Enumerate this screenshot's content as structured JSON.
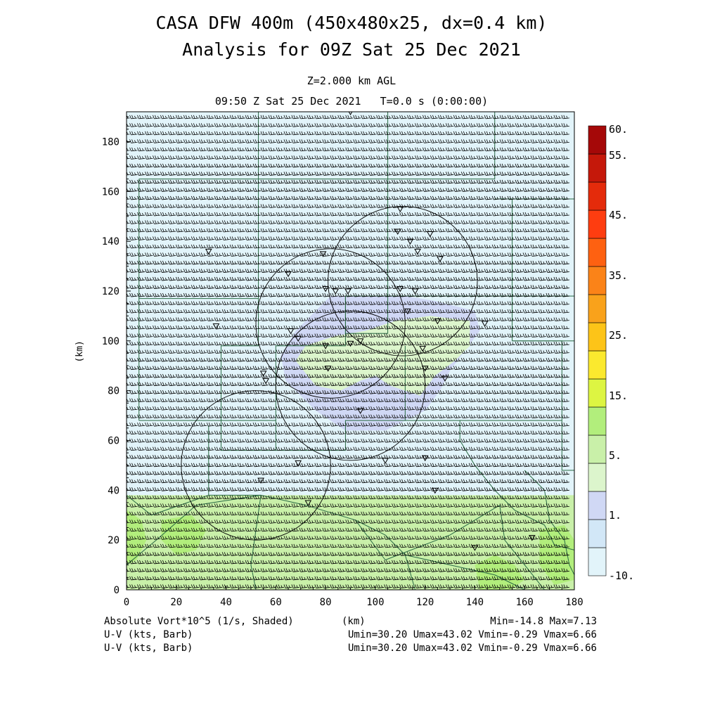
{
  "header": {
    "title": "CASA DFW 400m (450x480x25, dx=0.4 km)",
    "analysis": "Analysis for 09Z Sat 25 Dec 2021",
    "level": "Z=2.000 km AGL",
    "time": "09:50 Z Sat 25 Dec 2021   T=0.0 s (0:00:00)"
  },
  "footer": {
    "field": "Absolute Vort*10^5 (1/s, Shaded)",
    "xunit": "(km)",
    "minmax": "Min=-14.8 Max=7.13",
    "barb1_label": "U-V (kts, Barb)",
    "barb1_stats": "Umin=30.20 Umax=43.02 Vmin=-0.29 Vmax=6.66",
    "barb2_label": "U-V (kts, Barb)",
    "barb2_stats": "Umin=30.20 Umax=43.02 Vmin=-0.29 Vmax=6.66"
  },
  "chart_data": {
    "type": "heatmap",
    "xlabel": "(km)",
    "ylabel": "(km)",
    "xlim": [
      0,
      180
    ],
    "ylim": [
      0,
      192
    ],
    "xticks": [
      0,
      20,
      40,
      60,
      80,
      100,
      120,
      140,
      160,
      180
    ],
    "yticks": [
      0,
      20,
      40,
      60,
      80,
      100,
      120,
      140,
      160,
      180
    ],
    "colorbar": {
      "levels": [
        "-10.",
        "1.",
        "5.",
        "15.",
        "25.",
        "35.",
        "45.",
        "55.",
        "60."
      ],
      "colors": [
        "#e2f4fa",
        "#d2e7f7",
        "#d0d8f5",
        "#dcf5cc",
        "#c9f0a9",
        "#b2ee7c",
        "#ddf542",
        "#fbe92e",
        "#fdc418",
        "#f9a21b",
        "#fb8318",
        "#fe6111",
        "#fe3d10",
        "#e42b0b",
        "#c5180a",
        "#a50808"
      ]
    },
    "shading_regions": [
      {
        "level": "1.",
        "color": "#d0d8f5",
        "points": [
          [
            68,
            104
          ],
          [
            82,
            118
          ],
          [
            112,
            118
          ],
          [
            124,
            116
          ],
          [
            140,
            112
          ],
          [
            142,
            104
          ],
          [
            136,
            96
          ],
          [
            130,
            88
          ],
          [
            126,
            80
          ],
          [
            120,
            72
          ],
          [
            104,
            64
          ],
          [
            88,
            64
          ],
          [
            76,
            72
          ],
          [
            64,
            84
          ],
          [
            62,
            94
          ]
        ]
      },
      {
        "level": "5.",
        "color": "#dcf5cc",
        "points": [
          [
            68,
            92
          ],
          [
            72,
            98
          ],
          [
            84,
            102
          ],
          [
            96,
            104
          ],
          [
            108,
            108
          ],
          [
            122,
            110
          ],
          [
            138,
            108
          ],
          [
            138,
            98
          ],
          [
            132,
            92
          ],
          [
            124,
            86
          ],
          [
            118,
            78
          ],
          [
            106,
            82
          ],
          [
            100,
            86
          ],
          [
            94,
            84
          ],
          [
            86,
            80
          ],
          [
            76,
            82
          ]
        ]
      },
      {
        "level": "5.",
        "color": "#c9f0a9",
        "points": [
          [
            0,
            38
          ],
          [
            180,
            38
          ],
          [
            180,
            0
          ],
          [
            0,
            0
          ]
        ]
      },
      {
        "level": "15.",
        "color": "#b2ee7c",
        "points": [
          [
            0,
            32
          ],
          [
            6,
            28
          ],
          [
            8,
            20
          ],
          [
            4,
            12
          ],
          [
            0,
            10
          ]
        ]
      },
      {
        "level": "15.",
        "color": "#b2ee7c",
        "points": [
          [
            14,
            28
          ],
          [
            26,
            30
          ],
          [
            32,
            24
          ],
          [
            28,
            16
          ],
          [
            20,
            14
          ],
          [
            14,
            20
          ]
        ]
      },
      {
        "level": "15.",
        "color": "#b2ee7c",
        "points": [
          [
            140,
            10
          ],
          [
            148,
            14
          ],
          [
            156,
            10
          ],
          [
            160,
            4
          ],
          [
            154,
            0
          ],
          [
            142,
            0
          ]
        ]
      },
      {
        "level": "15.",
        "color": "#b2ee7c",
        "points": [
          [
            166,
            24
          ],
          [
            176,
            26
          ],
          [
            180,
            20
          ],
          [
            180,
            4
          ],
          [
            172,
            2
          ],
          [
            166,
            10
          ]
        ]
      }
    ],
    "wind_barbs": {
      "u_range": [
        30.2,
        43.02
      ],
      "v_range": [
        -0.29,
        6.66
      ],
      "units": "kts"
    },
    "radar_rings": [
      {
        "center": [
          52,
          50
        ],
        "radius": 30
      },
      {
        "center": [
          82,
          107
        ],
        "radius": 30
      },
      {
        "center": [
          90,
          82
        ],
        "radius": 30
      },
      {
        "center": [
          111,
          124
        ],
        "radius": 30
      }
    ],
    "stations": [
      [
        90,
        192
      ],
      [
        110,
        153
      ],
      [
        109,
        144
      ],
      [
        122,
        143
      ],
      [
        114,
        140
      ],
      [
        117,
        136
      ],
      [
        126,
        133
      ],
      [
        33,
        136
      ],
      [
        79,
        135
      ],
      [
        65,
        127
      ],
      [
        80,
        121
      ],
      [
        84,
        120
      ],
      [
        89,
        120
      ],
      [
        110,
        121
      ],
      [
        116,
        120
      ],
      [
        113,
        112
      ],
      [
        125,
        108
      ],
      [
        144,
        107
      ],
      [
        36,
        106
      ],
      [
        66,
        104
      ],
      [
        69,
        101
      ],
      [
        80,
        98
      ],
      [
        90,
        99
      ],
      [
        94,
        100
      ],
      [
        119,
        97
      ],
      [
        81,
        89
      ],
      [
        120,
        89
      ],
      [
        128,
        85
      ],
      [
        55,
        87
      ],
      [
        56,
        84
      ],
      [
        94,
        72
      ],
      [
        69,
        51
      ],
      [
        104,
        52
      ],
      [
        120,
        53
      ],
      [
        54,
        44
      ],
      [
        124,
        40
      ],
      [
        73,
        35
      ],
      [
        140,
        17
      ],
      [
        163,
        21
      ]
    ]
  }
}
